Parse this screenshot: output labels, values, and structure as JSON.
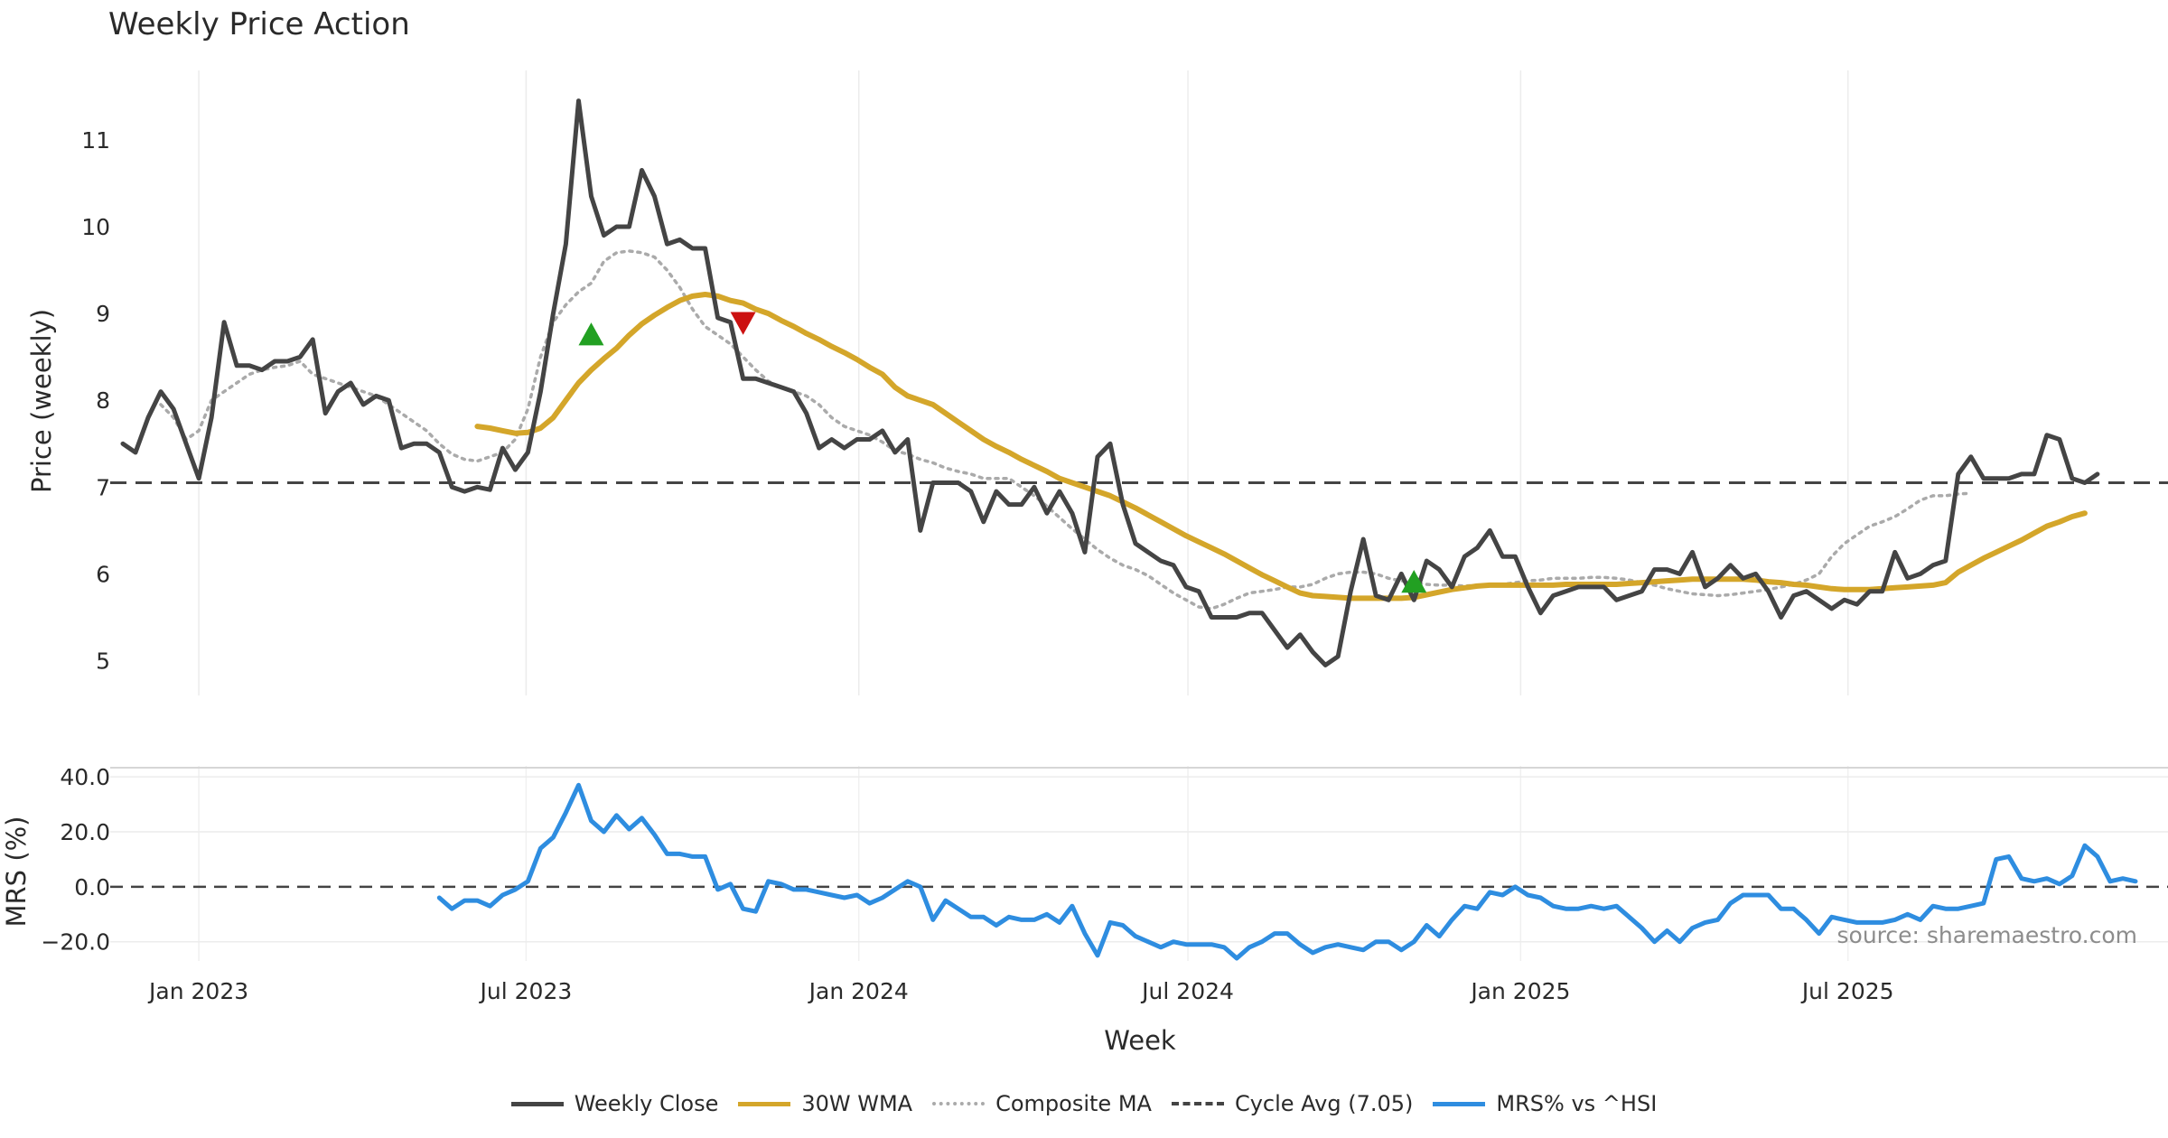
{
  "chart_data": [
    {
      "type": "line",
      "title": "Weekly Price Action",
      "ylabel": "Price (weekly)",
      "ylim": [
        4.6,
        11.8
      ],
      "yticks": [
        "5",
        "6",
        "7",
        "8",
        "9",
        "10",
        "11"
      ],
      "grid": true,
      "reference_line": {
        "name": "Cycle Avg (7.05)",
        "value": 7.05,
        "color": "#444444",
        "style": "dashed"
      },
      "series": [
        {
          "name": "Weekly Close",
          "color": "#444444",
          "start": "2022-11-20",
          "values": [
            7.5,
            7.4,
            7.8,
            8.1,
            7.9,
            7.5,
            7.1,
            7.8,
            8.9,
            8.4,
            8.4,
            8.35,
            8.45,
            8.45,
            8.5,
            8.7,
            7.85,
            8.1,
            8.2,
            7.95,
            8.05,
            8.0,
            7.45,
            7.5,
            7.5,
            7.4,
            7.0,
            6.95,
            7.0,
            6.97,
            7.45,
            7.2,
            7.4,
            8.1,
            9.0,
            9.8,
            11.45,
            10.35,
            9.9,
            10.0,
            10.0,
            10.65,
            10.35,
            9.8,
            9.85,
            9.75,
            9.75,
            8.95,
            8.9,
            8.25,
            8.25,
            8.2,
            8.15,
            8.1,
            7.85,
            7.45,
            7.55,
            7.45,
            7.55,
            7.55,
            7.65,
            7.4,
            7.55,
            6.5,
            7.05,
            7.05,
            7.05,
            6.95,
            6.6,
            6.95,
            6.8,
            6.8,
            7.0,
            6.7,
            6.95,
            6.7,
            6.25,
            7.35,
            7.5,
            6.8,
            6.35,
            6.25,
            6.15,
            6.1,
            5.85,
            5.8,
            5.5,
            5.5,
            5.5,
            5.55,
            5.55,
            5.35,
            5.15,
            5.3,
            5.1,
            4.95,
            5.05,
            5.8,
            6.4,
            5.75,
            5.7,
            6.0,
            5.7,
            6.15,
            6.05,
            5.85,
            6.2,
            6.3,
            6.5,
            6.2,
            6.2,
            5.85,
            5.55,
            5.75,
            5.8,
            5.85,
            5.85,
            5.85,
            5.7,
            5.75,
            5.8,
            6.05,
            6.05,
            6.0,
            6.25,
            5.85,
            5.95,
            6.1,
            5.95,
            6.0,
            5.8,
            5.5,
            5.75,
            5.8,
            5.7,
            5.6,
            5.7,
            5.65,
            5.8,
            5.8,
            6.25,
            5.95,
            6.0,
            6.1,
            6.15,
            7.15,
            7.35,
            7.1,
            7.1,
            7.1,
            7.15,
            7.15,
            7.6,
            7.55,
            7.1,
            7.05,
            7.15
          ]
        },
        {
          "name": "30W WMA",
          "color": "#d4a62a",
          "start": "2023-06-04",
          "values": [
            7.7,
            7.68,
            7.65,
            7.62,
            7.63,
            7.68,
            7.8,
            8.0,
            8.2,
            8.35,
            8.48,
            8.6,
            8.75,
            8.88,
            8.98,
            9.07,
            9.15,
            9.2,
            9.22,
            9.2,
            9.15,
            9.12,
            9.05,
            9.0,
            8.92,
            8.85,
            8.77,
            8.7,
            8.62,
            8.55,
            8.47,
            8.38,
            8.3,
            8.15,
            8.05,
            8.0,
            7.95,
            7.85,
            7.75,
            7.65,
            7.55,
            7.47,
            7.4,
            7.32,
            7.25,
            7.18,
            7.1,
            7.05,
            7.0,
            6.95,
            6.9,
            6.83,
            6.76,
            6.68,
            6.6,
            6.52,
            6.44,
            6.37,
            6.3,
            6.23,
            6.15,
            6.07,
            5.99,
            5.92,
            5.85,
            5.78,
            5.75,
            5.74,
            5.73,
            5.72,
            5.72,
            5.72,
            5.72,
            5.72,
            5.73,
            5.76,
            5.79,
            5.82,
            5.84,
            5.86,
            5.87,
            5.87,
            5.87,
            5.87,
            5.87,
            5.87,
            5.88,
            5.88,
            5.88,
            5.88,
            5.88,
            5.89,
            5.9,
            5.91,
            5.92,
            5.93,
            5.94,
            5.94,
            5.94,
            5.94,
            5.94,
            5.93,
            5.91,
            5.9,
            5.88,
            5.87,
            5.85,
            5.83,
            5.82,
            5.82,
            5.82,
            5.83,
            5.84,
            5.85,
            5.86,
            5.87,
            5.9,
            6.02,
            6.1,
            6.18,
            6.25,
            6.32,
            6.39,
            6.47,
            6.55,
            6.6,
            6.66,
            6.7
          ]
        },
        {
          "name": "Composite MA",
          "color": "#aaaaaa",
          "style": "dotted",
          "start": "2022-12-11",
          "values": [
            7.95,
            7.8,
            7.55,
            7.65,
            8.0,
            8.1,
            8.2,
            8.3,
            8.35,
            8.38,
            8.4,
            8.45,
            8.3,
            8.25,
            8.2,
            8.15,
            8.1,
            8.05,
            7.95,
            7.85,
            7.75,
            7.65,
            7.5,
            7.38,
            7.32,
            7.3,
            7.35,
            7.4,
            7.55,
            7.9,
            8.5,
            8.9,
            9.1,
            9.25,
            9.35,
            9.6,
            9.7,
            9.72,
            9.7,
            9.65,
            9.5,
            9.3,
            9.05,
            8.85,
            8.75,
            8.65,
            8.5,
            8.35,
            8.22,
            8.15,
            8.1,
            8.05,
            7.95,
            7.8,
            7.7,
            7.65,
            7.6,
            7.52,
            7.42,
            7.38,
            7.32,
            7.28,
            7.22,
            7.18,
            7.15,
            7.1,
            7.1,
            7.1,
            7.0,
            6.9,
            6.78,
            6.65,
            6.52,
            6.4,
            6.28,
            6.18,
            6.1,
            6.05,
            5.98,
            5.88,
            5.78,
            5.7,
            5.62,
            5.6,
            5.65,
            5.72,
            5.78,
            5.8,
            5.82,
            5.85,
            5.85,
            5.88,
            5.95,
            6.0,
            6.02,
            6.02,
            6.0,
            5.95,
            5.92,
            5.9,
            5.88,
            5.87,
            5.87,
            5.86,
            5.87,
            5.88,
            5.88,
            5.9,
            5.92,
            5.93,
            5.95,
            5.95,
            5.95,
            5.96,
            5.96,
            5.95,
            5.93,
            5.9,
            5.87,
            5.83,
            5.8,
            5.77,
            5.76,
            5.75,
            5.76,
            5.78,
            5.8,
            5.82,
            5.85,
            5.88,
            5.93,
            6.0,
            6.2,
            6.35,
            6.45,
            6.55,
            6.6,
            6.66,
            6.75,
            6.85,
            6.9,
            6.9,
            6.92,
            6.93
          ]
        }
      ],
      "markers": [
        {
          "type": "buy",
          "shape": "triangle-up",
          "color": "#22a022",
          "x": "2023-08-06",
          "y": 8.75
        },
        {
          "type": "sell",
          "shape": "triangle-down",
          "color": "#cc1111",
          "x": "2023-10-29",
          "y": 8.9
        },
        {
          "type": "buy",
          "shape": "triangle-up",
          "color": "#22a022",
          "x": "2024-11-03",
          "y": 5.9
        }
      ]
    },
    {
      "type": "line",
      "xlabel": "Week",
      "ylabel": "MRS (%)",
      "ylim": [
        -27,
        44
      ],
      "yticks": [
        "40.0",
        "20.0",
        "0.0",
        "−20.0"
      ],
      "xticks": [
        "Jan 2023",
        "Jul 2023",
        "Jan 2024",
        "Jul 2024",
        "Jan 2025",
        "Jul 2025"
      ],
      "grid": true,
      "reference_line": {
        "value": 0,
        "color": "#444444",
        "style": "dashed"
      },
      "annotation": "source: sharemaestro.com",
      "series": [
        {
          "name": "MRS% vs ^HSI",
          "color": "#2e8de0",
          "start": "2023-05-14",
          "values": [
            -4,
            -8,
            -5,
            -5,
            -7,
            -3,
            -1,
            2,
            14,
            18,
            27,
            37,
            24,
            20,
            26,
            21,
            25,
            19,
            12,
            12,
            11,
            11,
            -1,
            1,
            -8,
            -9,
            2,
            1,
            -1,
            -1,
            -2,
            -3,
            -4,
            -3,
            -6,
            -4,
            -1,
            2,
            0,
            -12,
            -5,
            -8,
            -11,
            -11,
            -14,
            -11,
            -12,
            -12,
            -10,
            -13,
            -7,
            -17,
            -25,
            -13,
            -14,
            -18,
            -20,
            -22,
            -20,
            -21,
            -21,
            -21,
            -22,
            -26,
            -22,
            -20,
            -17,
            -17,
            -21,
            -24,
            -22,
            -21,
            -22,
            -23,
            -20,
            -20,
            -23,
            -20,
            -14,
            -18,
            -12,
            -7,
            -8,
            -2,
            -3,
            0,
            -3,
            -4,
            -7,
            -8,
            -8,
            -7,
            -8,
            -7,
            -11,
            -15,
            -20,
            -16,
            -20,
            -15,
            -13,
            -12,
            -6,
            -3,
            -3,
            -3,
            -8,
            -8,
            -12,
            -17,
            -11,
            -12,
            -13,
            -13,
            -13,
            -12,
            -10,
            -12,
            -7,
            -8,
            -8,
            -7,
            -6,
            10,
            11,
            3,
            2,
            3,
            1,
            4,
            15,
            11,
            2,
            3,
            2
          ]
        }
      ]
    }
  ],
  "legend": {
    "items": [
      {
        "label": "Weekly Close",
        "color": "#444444",
        "style": "solid"
      },
      {
        "label": "30W WMA",
        "color": "#d4a62a",
        "style": "solid"
      },
      {
        "label": "Composite MA",
        "color": "#aaaaaa",
        "style": "dotted"
      },
      {
        "label": "Cycle Avg (7.05)",
        "color": "#444444",
        "style": "dashed"
      },
      {
        "label": "MRS% vs ^HSI",
        "color": "#2e8de0",
        "style": "solid"
      }
    ]
  }
}
